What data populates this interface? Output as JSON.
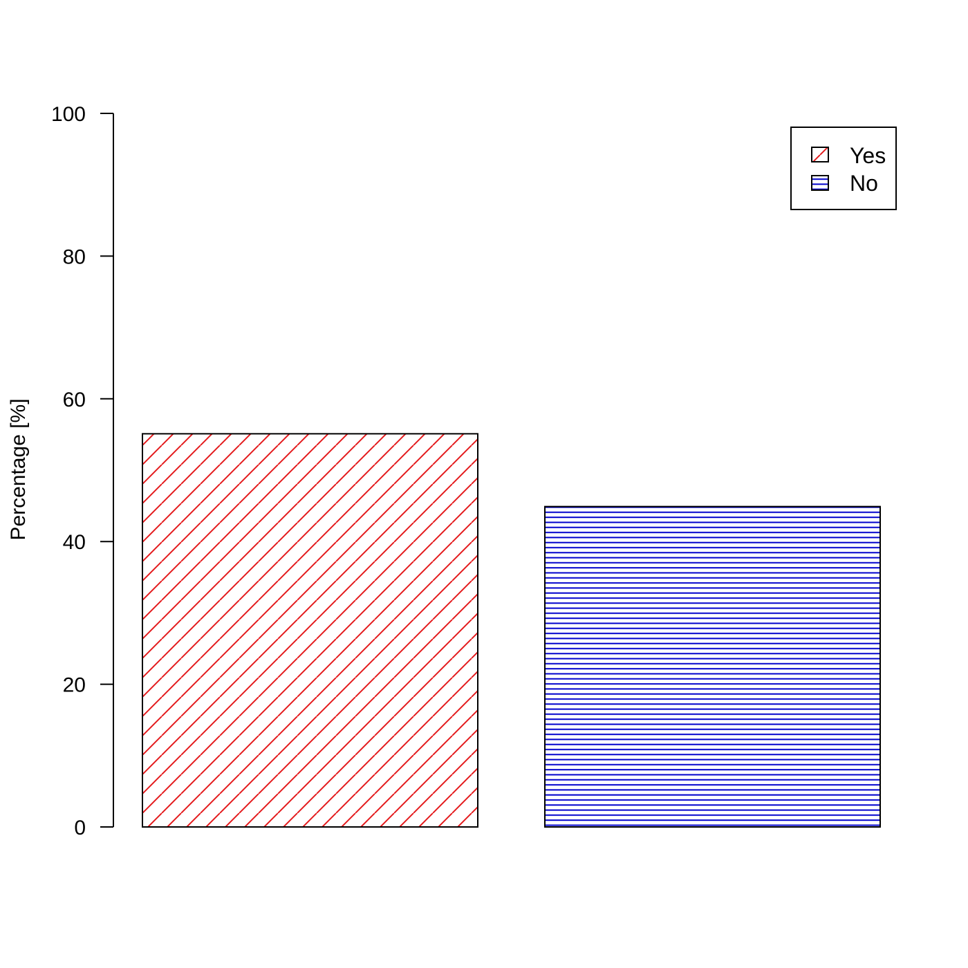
{
  "chart_data": {
    "type": "bar",
    "categories": [
      "Yes",
      "No"
    ],
    "values": [
      55.1,
      44.9
    ],
    "xlabel": "",
    "ylabel": "Percentage [%]",
    "ylim": [
      0,
      100
    ],
    "yticks": [
      0,
      20,
      40,
      60,
      80,
      100
    ],
    "grid": false,
    "legend": {
      "placement": "top-right",
      "entries": [
        {
          "label": "Yes",
          "color": "#e41a1c",
          "pattern": "diagonal-hatch"
        },
        {
          "label": "No",
          "color": "#0000cc",
          "pattern": "horizontal-hatch"
        }
      ]
    },
    "colors": {
      "yes": "#e41a1c",
      "no": "#0000cc",
      "outline": "#000000"
    }
  }
}
